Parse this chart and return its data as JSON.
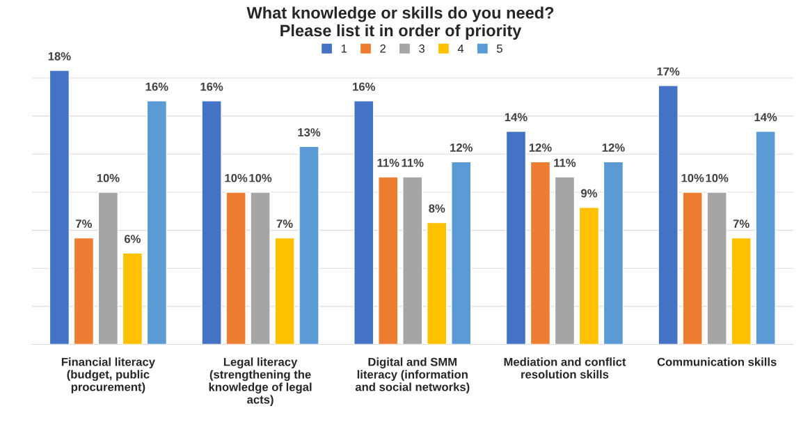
{
  "chart_data": {
    "type": "bar",
    "title": "What knowledge or skills do you need?\nPlease list it in order of priority",
    "categories": [
      "Financial literacy\n(budget, public\nprocurement)",
      "Legal literacy\n(strengthening the\nknowledge of legal\nacts)",
      "Digital and SMM\nliteracy (information\nand social networks)",
      "Mediation and conflict\nresolution skills",
      "Communication skills"
    ],
    "series": [
      {
        "name": "1",
        "color": "#4472c4",
        "values": [
          18,
          16,
          16,
          14,
          17
        ],
        "value_labels": [
          "18%",
          "16%",
          "16%",
          "14%",
          "17%"
        ]
      },
      {
        "name": "2",
        "color": "#ed7d31",
        "values": [
          7,
          10,
          11,
          12,
          10
        ],
        "value_labels": [
          "7%",
          "10%",
          "11%",
          "12%",
          "10%"
        ]
      },
      {
        "name": "3",
        "color": "#a5a5a5",
        "values": [
          10,
          10,
          11,
          11,
          10
        ],
        "value_labels": [
          "10%",
          "10%",
          "11%",
          "11%",
          "10%"
        ]
      },
      {
        "name": "4",
        "color": "#ffc000",
        "values": [
          6,
          7,
          8,
          9,
          7
        ],
        "value_labels": [
          "6%",
          "7%",
          "8%",
          "9%",
          "7%"
        ]
      },
      {
        "name": "5",
        "color": "#5b9bd5",
        "values": [
          16,
          13,
          12,
          12,
          14
        ],
        "value_labels": [
          "16%",
          "13%",
          "12%",
          "12%",
          "14%"
        ]
      }
    ],
    "grid": "y",
    "legend": "top",
    "tick_labels": "x"
  }
}
